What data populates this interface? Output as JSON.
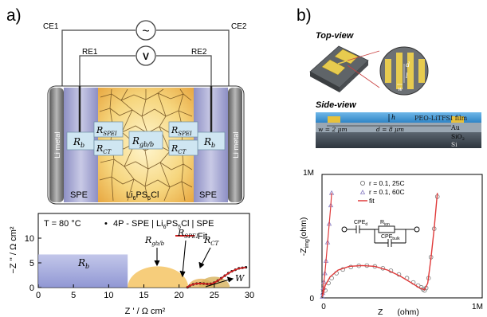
{
  "panel_a": {
    "label": "a)",
    "cell": {
      "ce1": "CE1",
      "ce2": "CE2",
      "re1": "RE1",
      "re2": "RE2",
      "ac_symbol": "~",
      "v_symbol": "V",
      "li_metal": "Li metal",
      "spe": "SPE",
      "electrolyte_base": "Li",
      "electrolyte_sub": "6",
      "electrolyte_rest": "PS",
      "electrolyte_sub2": "5",
      "electrolyte_end": "Cl",
      "r_b": "R",
      "r_b_sub": "b",
      "r_spei": "R",
      "r_spei_sub": "SPEI",
      "r_ct": "R",
      "r_ct_sub": "CT",
      "r_gbb": "R",
      "r_gbb_sub": "gb/b"
    },
    "nyquist": {
      "temperature": "T = 80 °C",
      "bullet": "•",
      "description": "4P - SPE | Li",
      "desc_sub1": "6",
      "desc_mid": "PS",
      "desc_sub2": "5",
      "desc_end": "Cl | SPE",
      "fit_label": "Fit",
      "region_rb": "R",
      "region_rb_sub": "b",
      "ann_rgbb": "R",
      "ann_rgbb_sub": "gb/b",
      "ann_rspei": "R",
      "ann_rspei_sub": "SPEI",
      "ann_rct": "R",
      "ann_rct_sub": "CT",
      "ann_w": "W",
      "xlabel": "Z ' / Ω cm²",
      "ylabel": "−Z '' / Ω cm²"
    }
  },
  "panel_b": {
    "label": "b)",
    "top_view": "Top-view",
    "side_view": "Side-view",
    "film": "PEO-LiTFSI film",
    "au": "Au",
    "sio2": "SiO",
    "sio2_sub": "2",
    "si": "Si",
    "h": "h",
    "w_eq": "w = 2 μm",
    "d_eq": "d = 8 μm",
    "inset_d": "d",
    "inset_l": "l",
    "inset_w": "w",
    "plot": {
      "ytick_top": "1M",
      "ytick_bottom": "0",
      "xtick_left": "0",
      "xtick_right": "1M",
      "ylabel": "-Z",
      "ylabel_sub": "img",
      "ylabel_unit": "(ohm)",
      "xlabel": "Z",
      "xlabel_unit": "(ohm)",
      "legend": [
        "r = 0.1, 25C",
        "r = 0.1, 60C",
        "fit"
      ],
      "circuit_cpe_d": "CPE",
      "circuit_cpe_d_sub": "d",
      "circuit_r_ion": "R",
      "circuit_r_ion_sub": "ion",
      "circuit_cpe_bulk": "CPE",
      "circuit_cpe_bulk_sub": "bulk"
    }
  },
  "chart_data": [
    {
      "type": "line",
      "panel": "a",
      "xlabel": "Z ' / Ω cm²",
      "ylabel": "−Z '' / Ω cm²",
      "xlim": [
        0,
        30
      ],
      "ylim": [
        0,
        15
      ],
      "xticks": [
        0,
        5,
        10,
        15,
        20,
        25,
        30
      ],
      "yticks": [
        0,
        5,
        10
      ],
      "legend": "top-right",
      "series": [
        {
          "name": "4P - SPE | Li6PS5Cl | SPE",
          "style": "points",
          "x": [
            21.2,
            21.5,
            22.0,
            22.5,
            23.0,
            23.5,
            24.0,
            24.5,
            25.0,
            25.5,
            26.0,
            26.5,
            27.0,
            27.5,
            28.0,
            28.5,
            29.0,
            29.5
          ],
          "y": [
            0.05,
            0.35,
            0.65,
            0.8,
            0.85,
            0.8,
            0.7,
            0.75,
            1.0,
            1.4,
            1.9,
            2.4,
            2.9,
            3.3,
            3.6,
            3.9,
            4.0,
            4.1
          ]
        },
        {
          "name": "Fit",
          "style": "line",
          "x": [
            21.1,
            21.4,
            21.9,
            22.4,
            23.0,
            23.5,
            24.0,
            24.5,
            25.0,
            25.5,
            26.0,
            26.5,
            27.0,
            27.5,
            28.0,
            28.5,
            29.0,
            29.5
          ],
          "y": [
            0.0,
            0.3,
            0.6,
            0.78,
            0.82,
            0.78,
            0.7,
            0.74,
            0.98,
            1.38,
            1.88,
            2.38,
            2.88,
            3.28,
            3.6,
            3.86,
            3.98,
            4.05
          ]
        }
      ],
      "regions": [
        {
          "label": "Rb",
          "x": [
            0,
            12.7
          ],
          "height": 6.7
        },
        {
          "label": "Rgb/b",
          "center": 17,
          "radius": 4.3
        },
        {
          "label": "RSPEI",
          "center": 23.1,
          "radius": 1.8
        },
        {
          "label": "RCT",
          "center": 25,
          "radius": 2.2
        }
      ]
    },
    {
      "type": "scatter",
      "panel": "b",
      "xlabel": "Z (ohm)",
      "ylabel": "-Zimg (ohm)",
      "xlim": [
        0,
        1000000
      ],
      "ylim": [
        0,
        1000000
      ],
      "legend": "top-left",
      "series": [
        {
          "name": "r = 0.1, 25C",
          "marker": "circle",
          "x": [
            20000,
            40000,
            60000,
            90000,
            130000,
            180000,
            230000,
            280000,
            330000,
            380000,
            430000,
            480000,
            530000,
            570000,
            600000,
            620000,
            630000,
            640000,
            650000,
            665000,
            680000,
            700000,
            720000
          ],
          "y": [
            60000,
            120000,
            160000,
            200000,
            230000,
            250000,
            260000,
            262000,
            255000,
            240000,
            220000,
            190000,
            160000,
            125000,
            100000,
            85000,
            70000,
            60000,
            80000,
            160000,
            330000,
            560000,
            820000
          ]
        },
        {
          "name": "r = 0.1, 60C",
          "marker": "triangle",
          "x": [
            2000,
            5000,
            8000,
            12000,
            18000,
            25000,
            35000,
            45000,
            55000,
            60000
          ],
          "y": [
            10000,
            40000,
            80000,
            130000,
            200000,
            300000,
            450000,
            600000,
            750000,
            850000
          ]
        },
        {
          "name": "fit",
          "style": "line",
          "x": [
            5000,
            20000,
            50000,
            100000,
            170000,
            250000,
            330000,
            410000,
            490000,
            560000,
            610000,
            640000,
            660000,
            680000,
            700000,
            720000
          ],
          "y": [
            20000,
            100000,
            170000,
            225000,
            255000,
            262000,
            255000,
            225000,
            175000,
            120000,
            80000,
            65000,
            120000,
            320000,
            560000,
            850000
          ]
        }
      ]
    }
  ]
}
